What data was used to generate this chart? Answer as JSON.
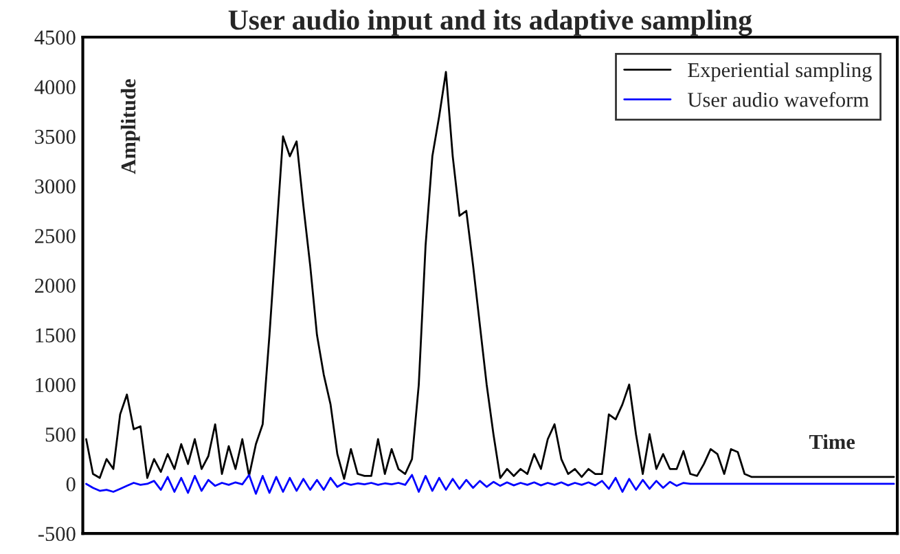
{
  "chart_data": {
    "type": "line",
    "title": "User audio input and its adaptive sampling",
    "xlabel": "Time",
    "ylabel": "Amplitude",
    "categories": [
      null,
      null,
      null,
      null,
      null,
      null,
      null,
      null,
      null,
      null,
      null,
      null,
      null,
      null,
      null,
      null,
      null,
      null,
      null,
      null,
      null,
      null,
      null,
      null,
      null,
      null,
      null,
      null,
      null,
      null,
      null,
      null,
      null,
      null,
      null,
      null,
      null,
      null,
      null,
      null,
      null,
      null,
      null,
      null,
      null,
      null,
      null,
      null,
      null,
      null,
      null,
      null,
      null,
      null,
      null,
      null,
      null,
      null,
      null,
      null,
      null,
      null,
      null,
      null,
      null,
      null,
      null,
      null,
      null,
      null,
      null,
      null,
      null,
      null,
      null,
      null,
      null,
      null,
      null,
      null,
      null,
      null,
      null,
      null,
      null,
      null,
      null,
      null,
      null,
      null,
      null,
      null,
      null,
      null,
      null,
      null,
      null,
      null,
      null,
      null,
      null,
      null,
      null,
      null,
      null,
      null,
      null,
      null,
      null,
      null,
      null,
      null,
      null,
      null,
      null,
      null,
      null,
      null,
      null,
      null
    ],
    "series": [
      {
        "name": "Experiential sampling",
        "color": "#000000",
        "values": [
          450,
          100,
          60,
          250,
          150,
          700,
          900,
          550,
          580,
          60,
          250,
          120,
          300,
          150,
          400,
          200,
          450,
          150,
          280,
          600,
          100,
          380,
          150,
          450,
          80,
          400,
          600,
          1500,
          2500,
          3500,
          3300,
          3450,
          2800,
          2200,
          1500,
          1100,
          800,
          300,
          50,
          350,
          100,
          80,
          80,
          450,
          100,
          350,
          150,
          100,
          250,
          1000,
          2400,
          3300,
          3700,
          4150,
          3300,
          2700,
          2750,
          2200,
          1600,
          1000,
          500,
          60,
          150,
          80,
          150,
          100,
          300,
          150,
          450,
          600,
          250,
          100,
          150,
          70,
          150,
          100,
          100,
          700,
          650,
          800,
          1000,
          500,
          100,
          500,
          150,
          300,
          150,
          150,
          330,
          100,
          80,
          200,
          350,
          300,
          100,
          350,
          320,
          100,
          70,
          70,
          70,
          70,
          70,
          70,
          70,
          70,
          70,
          70,
          70,
          70,
          70,
          70,
          70,
          70,
          70,
          70,
          70,
          70,
          70,
          70
        ]
      },
      {
        "name": "User audio waveform",
        "color": "#0000ff",
        "values": [
          0,
          -40,
          -70,
          -60,
          -80,
          -50,
          -20,
          10,
          -10,
          0,
          30,
          -60,
          70,
          -80,
          60,
          -90,
          80,
          -70,
          40,
          -20,
          10,
          -10,
          15,
          -5,
          90,
          -100,
          80,
          -90,
          70,
          -80,
          60,
          -70,
          50,
          -60,
          40,
          -60,
          60,
          -30,
          10,
          -10,
          5,
          -5,
          10,
          -10,
          5,
          -5,
          10,
          -10,
          90,
          -80,
          80,
          -70,
          60,
          -60,
          50,
          -50,
          40,
          -40,
          30,
          -30,
          20,
          -20,
          15,
          -15,
          10,
          -10,
          15,
          -15,
          10,
          -10,
          15,
          -15,
          10,
          -10,
          15,
          -15,
          30,
          -50,
          60,
          -80,
          50,
          -60,
          40,
          -50,
          30,
          -40,
          20,
          -20,
          10,
          0,
          0,
          0,
          0,
          0,
          0,
          0,
          0,
          0,
          0,
          0,
          0,
          0,
          0,
          0,
          0,
          0,
          0,
          0,
          0,
          0,
          0,
          0,
          0,
          0,
          0,
          0,
          0,
          0,
          0,
          0
        ]
      }
    ],
    "ylim": [
      -500,
      4500
    ],
    "yticks": [
      -500,
      0,
      500,
      1000,
      1500,
      2000,
      2500,
      3000,
      3500,
      4000,
      4500
    ],
    "tick_labels": "y",
    "legend": "top right",
    "marker": "none",
    "line_style": "solid"
  }
}
